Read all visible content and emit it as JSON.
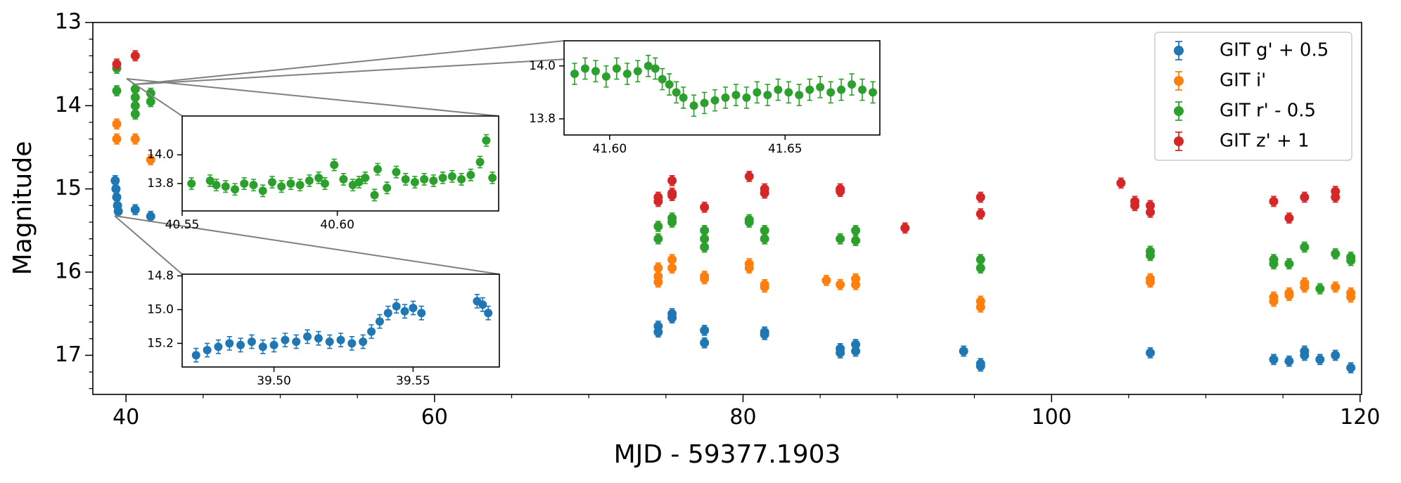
{
  "chart_data": [
    {
      "type": "scatter",
      "x_label": "MJD - 59377.1903",
      "y_label": "Magnitude",
      "xlim": [
        37.85,
        120.1
      ],
      "ylim": [
        13,
        17.47
      ],
      "invert_y": true,
      "xticks": [
        40,
        60,
        80,
        100,
        120
      ],
      "xticks_minor": [
        45,
        50,
        55,
        65,
        70,
        75,
        85,
        90,
        95,
        105,
        110,
        115
      ],
      "yticks": [
        13,
        14,
        15,
        16,
        17
      ],
      "yticks_minor": [
        13.2,
        13.4,
        13.6,
        13.8,
        14.2,
        14.4,
        14.6,
        14.8,
        15.2,
        15.4,
        15.6,
        15.8,
        16.2,
        16.4,
        16.6,
        16.8,
        17.2,
        17.4
      ],
      "legend": "upper right",
      "series": [
        {
          "name": "GIT g' + 0.5",
          "color": "#1f77b4",
          "error": 0.06,
          "x": [
            39.3,
            39.35,
            39.4,
            39.45,
            39.5,
            40.6,
            41.6,
            74.5,
            74.5,
            75.4,
            75.4,
            77.5,
            77.5,
            81.4,
            81.4,
            86.3,
            86.3,
            87.3,
            87.3,
            94.3,
            95.4,
            95.4,
            106.4,
            114.4,
            115.4,
            116.4,
            116.4,
            117.4,
            118.4,
            119.4
          ],
          "values": [
            14.9,
            15.0,
            15.1,
            15.2,
            15.27,
            15.25,
            15.33,
            16.65,
            16.72,
            16.5,
            16.55,
            16.7,
            16.85,
            16.72,
            16.75,
            16.92,
            16.97,
            16.87,
            16.95,
            16.95,
            17.1,
            17.13,
            16.97,
            17.05,
            17.07,
            16.95,
            17.0,
            17.05,
            17.0,
            17.15
          ]
        },
        {
          "name": "GIT i'",
          "color": "#ff7f0e",
          "error": 0.06,
          "x": [
            39.4,
            39.4,
            40.6,
            41.6,
            74.5,
            74.5,
            74.5,
            75.4,
            75.4,
            77.5,
            77.5,
            80.4,
            80.4,
            81.4,
            81.4,
            85.4,
            86.3,
            87.3,
            87.3,
            95.4,
            95.4,
            106.4,
            106.4,
            114.4,
            114.4,
            115.4,
            115.4,
            116.4,
            116.4,
            118.4,
            119.4,
            119.4
          ],
          "values": [
            14.22,
            14.4,
            14.4,
            14.65,
            15.95,
            16.05,
            16.12,
            15.85,
            15.95,
            16.05,
            16.08,
            15.9,
            15.95,
            16.15,
            16.18,
            16.1,
            16.15,
            16.08,
            16.15,
            16.35,
            16.42,
            16.08,
            16.12,
            16.3,
            16.35,
            16.25,
            16.28,
            16.13,
            16.18,
            16.18,
            16.25,
            16.3
          ]
        },
        {
          "name": "GIT r' - 0.5",
          "color": "#2ca02c",
          "error": 0.06,
          "x": [
            39.4,
            39.4,
            40.6,
            40.6,
            40.6,
            40.6,
            41.6,
            41.6,
            74.5,
            74.5,
            75.4,
            75.4,
            77.5,
            77.5,
            77.5,
            80.4,
            80.4,
            81.4,
            81.4,
            86.3,
            87.3,
            87.3,
            95.4,
            95.4,
            106.4,
            106.4,
            114.4,
            114.4,
            115.4,
            116.4,
            117.4,
            118.4,
            119.4,
            119.4
          ],
          "values": [
            13.55,
            13.82,
            13.8,
            13.9,
            14.0,
            14.1,
            13.85,
            13.95,
            15.45,
            15.6,
            15.35,
            15.4,
            15.5,
            15.6,
            15.7,
            15.37,
            15.4,
            15.5,
            15.6,
            15.6,
            15.5,
            15.62,
            15.85,
            15.95,
            15.75,
            15.8,
            15.85,
            15.9,
            15.9,
            15.7,
            16.2,
            15.78,
            15.82,
            15.86
          ]
        },
        {
          "name": "GIT z' + 1",
          "color": "#d62728",
          "error": 0.06,
          "x": [
            39.4,
            40.6,
            74.5,
            74.5,
            75.4,
            75.4,
            75.4,
            77.5,
            80.4,
            81.4,
            81.4,
            86.3,
            86.3,
            90.5,
            95.4,
            95.4,
            104.5,
            105.4,
            105.4,
            106.4,
            106.4,
            114.4,
            115.4,
            116.4,
            118.4,
            118.4
          ],
          "values": [
            13.5,
            13.4,
            15.1,
            15.15,
            14.9,
            15.05,
            15.08,
            15.22,
            14.85,
            15.0,
            15.05,
            15.0,
            15.03,
            15.47,
            15.1,
            15.3,
            14.93,
            15.15,
            15.2,
            15.2,
            15.28,
            15.15,
            15.35,
            15.1,
            15.03,
            15.1
          ]
        }
      ]
    },
    {
      "type": "scatter",
      "xlim": [
        40.55,
        40.652
      ],
      "ylim": [
        13.61,
        14.27
      ],
      "invert_y": false,
      "xticks": [
        40.55,
        {
          "value": 40.6,
          "label": "40.60"
        }
      ],
      "yticks": [
        {
          "value": 14,
          "label": "14.0"
        },
        13.8
      ],
      "series": [
        {
          "color": "#2ca02c",
          "error": 0.04,
          "x": [
            40.553,
            40.559,
            40.561,
            40.564,
            40.567,
            40.57,
            40.573,
            40.576,
            40.579,
            40.582,
            40.585,
            40.588,
            40.591,
            40.594,
            40.596,
            40.599,
            40.602,
            40.605,
            40.607,
            40.609,
            40.612,
            40.613,
            40.616,
            40.619,
            40.622,
            40.625,
            40.628,
            40.631,
            40.634,
            40.637,
            40.64,
            40.643,
            40.646,
            40.648,
            40.65
          ],
          "values": [
            13.8,
            13.82,
            13.79,
            13.78,
            13.76,
            13.8,
            13.79,
            13.75,
            13.81,
            13.78,
            13.8,
            13.79,
            13.82,
            13.84,
            13.8,
            13.93,
            13.83,
            13.79,
            13.81,
            13.84,
            13.72,
            13.9,
            13.77,
            13.88,
            13.83,
            13.81,
            13.83,
            13.82,
            13.84,
            13.85,
            13.83,
            13.86,
            13.95,
            14.1,
            13.84
          ]
        }
      ]
    },
    {
      "type": "scatter",
      "xlim": [
        39.467,
        39.581
      ],
      "ylim": [
        14.79,
        15.34
      ],
      "invert_y": true,
      "xticks": [
        {
          "value": 39.5,
          "label": "39.50"
        },
        39.55
      ],
      "yticks": [
        14.8,
        {
          "value": 15,
          "label": "15.0"
        },
        15.2
      ],
      "series": [
        {
          "color": "#1f77b4",
          "error": 0.04,
          "x": [
            39.472,
            39.476,
            39.48,
            39.484,
            39.488,
            39.492,
            39.496,
            39.5,
            39.504,
            39.508,
            39.512,
            39.516,
            39.52,
            39.524,
            39.528,
            39.532,
            39.535,
            39.538,
            39.541,
            39.544,
            39.547,
            39.55,
            39.553,
            39.573,
            39.575,
            39.577
          ],
          "values": [
            15.27,
            15.24,
            15.22,
            15.2,
            15.21,
            15.19,
            15.22,
            15.21,
            15.18,
            15.19,
            15.16,
            15.17,
            15.19,
            15.18,
            15.2,
            15.19,
            15.13,
            15.07,
            15.02,
            14.98,
            15.01,
            14.99,
            15.02,
            14.95,
            14.97,
            15.02
          ]
        }
      ]
    },
    {
      "type": "scatter",
      "xlim": [
        41.587,
        41.677
      ],
      "ylim": [
        13.739,
        14.095
      ],
      "invert_y": false,
      "xticks": [
        {
          "value": 41.6,
          "label": "41.60"
        },
        41.65
      ],
      "yticks": [
        {
          "value": 14,
          "label": "14.0"
        },
        13.8
      ],
      "series": [
        {
          "color": "#2ca02c",
          "error": 0.04,
          "x": [
            41.59,
            41.593,
            41.596,
            41.599,
            41.602,
            41.605,
            41.608,
            41.611,
            41.613,
            41.615,
            41.617,
            41.619,
            41.621,
            41.624,
            41.627,
            41.63,
            41.633,
            41.636,
            41.639,
            41.642,
            41.645,
            41.648,
            41.651,
            41.654,
            41.657,
            41.66,
            41.663,
            41.666,
            41.669,
            41.672,
            41.675
          ],
          "values": [
            13.97,
            13.99,
            13.98,
            13.96,
            13.99,
            13.97,
            13.98,
            14.0,
            13.99,
            13.95,
            13.93,
            13.9,
            13.88,
            13.85,
            13.86,
            13.87,
            13.88,
            13.89,
            13.88,
            13.9,
            13.89,
            13.91,
            13.9,
            13.89,
            13.91,
            13.92,
            13.9,
            13.91,
            13.93,
            13.91,
            13.9
          ]
        }
      ]
    }
  ]
}
